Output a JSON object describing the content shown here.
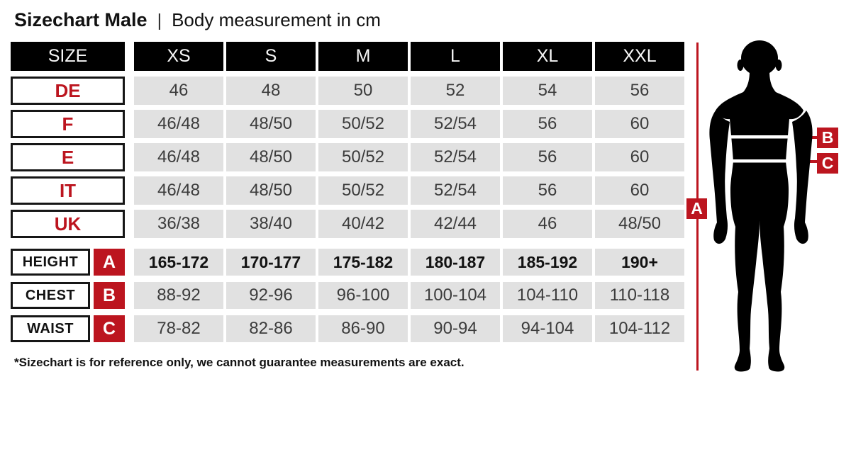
{
  "title": {
    "main": "Sizechart Male",
    "separator": "|",
    "subtitle": "Body measurement in cm"
  },
  "table": {
    "header": {
      "label": "SIZE",
      "columns": [
        "XS",
        "S",
        "M",
        "L",
        "XL",
        "XXL"
      ]
    },
    "size_rows": [
      {
        "label": "DE",
        "values": [
          "46",
          "48",
          "50",
          "52",
          "54",
          "56"
        ]
      },
      {
        "label": "F",
        "values": [
          "46/48",
          "48/50",
          "50/52",
          "52/54",
          "56",
          "60"
        ]
      },
      {
        "label": "E",
        "values": [
          "46/48",
          "48/50",
          "50/52",
          "52/54",
          "56",
          "60"
        ]
      },
      {
        "label": "IT",
        "values": [
          "46/48",
          "48/50",
          "50/52",
          "52/54",
          "56",
          "60"
        ]
      },
      {
        "label": "UK",
        "values": [
          "36/38",
          "38/40",
          "40/42",
          "42/44",
          "46",
          "48/50"
        ]
      }
    ],
    "measurement_rows": [
      {
        "label": "HEIGHT",
        "marker": "A",
        "bold": true,
        "values": [
          "165-172",
          "170-177",
          "175-182",
          "180-187",
          "185-192",
          "190+"
        ]
      },
      {
        "label": "CHEST",
        "marker": "B",
        "bold": false,
        "values": [
          "88-92",
          "92-96",
          "96-100",
          "100-104",
          "104-110",
          "110-118"
        ]
      },
      {
        "label": "WAIST",
        "marker": "C",
        "bold": false,
        "values": [
          "78-82",
          "82-86",
          "86-90",
          "90-94",
          "94-104",
          "104-112"
        ]
      }
    ]
  },
  "figure": {
    "height_marker": "A",
    "chest_marker": "B",
    "waist_marker": "C"
  },
  "footnote": "*Sizechart is for reference only, we cannot guarantee measurements are exact.",
  "colors": {
    "accent_red": "#bc151f",
    "cell_gray": "#e1e1e1",
    "header_black": "#000000"
  },
  "chart_data": {
    "type": "table",
    "title": "Sizechart Male — Body measurement in cm",
    "columns": [
      "SIZE",
      "XS",
      "S",
      "M",
      "L",
      "XL",
      "XXL"
    ],
    "rows": [
      [
        "DE",
        "46",
        "48",
        "50",
        "52",
        "54",
        "56"
      ],
      [
        "F",
        "46/48",
        "48/50",
        "50/52",
        "52/54",
        "56",
        "60"
      ],
      [
        "E",
        "46/48",
        "48/50",
        "50/52",
        "52/54",
        "56",
        "60"
      ],
      [
        "IT",
        "46/48",
        "48/50",
        "50/52",
        "52/54",
        "56",
        "60"
      ],
      [
        "UK",
        "36/38",
        "38/40",
        "40/42",
        "42/44",
        "46",
        "48/50"
      ],
      [
        "HEIGHT (A)",
        "165-172",
        "170-177",
        "175-182",
        "180-187",
        "185-192",
        "190+"
      ],
      [
        "CHEST (B)",
        "88-92",
        "92-96",
        "96-100",
        "100-104",
        "104-110",
        "110-118"
      ],
      [
        "WAIST (C)",
        "78-82",
        "82-86",
        "86-90",
        "90-94",
        "94-104",
        "104-112"
      ]
    ],
    "notes": "*Sizechart is for reference only, we cannot guarantee measurements are exact."
  }
}
